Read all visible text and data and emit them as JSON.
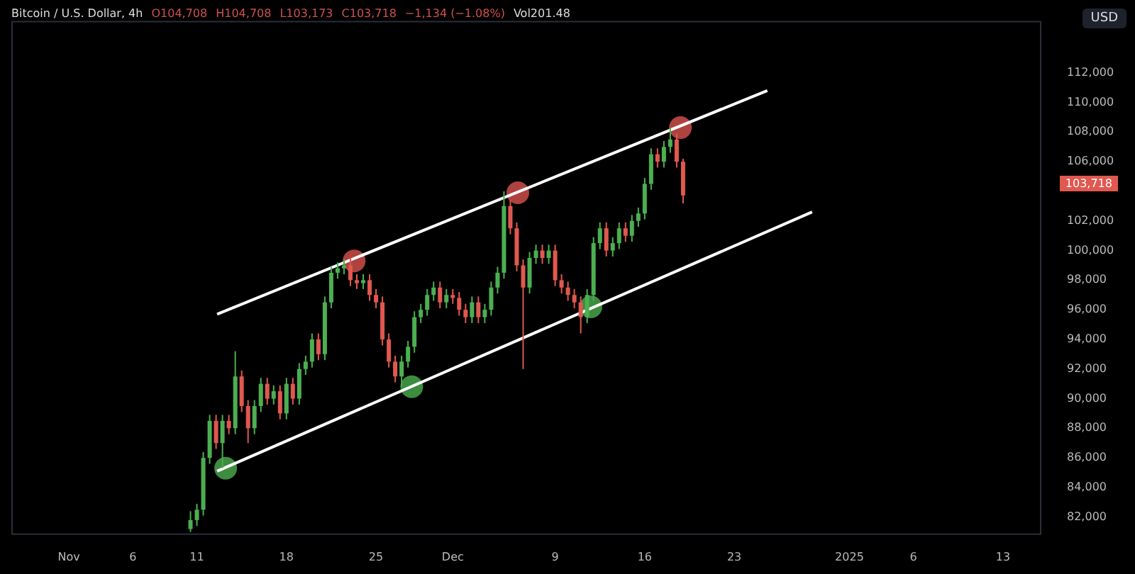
{
  "chart_data": {
    "type": "candlestick",
    "title": "Bitcoin / U.S. Dollar, 4h",
    "ylabel": "USD",
    "annotations": [
      "O104,708",
      "H104,708",
      "L103,173",
      "C103,718",
      "−1,134 (−1.08%)",
      "Vol201.48",
      "103,718"
    ],
    "x": [
      "2024-11-10T12:00",
      "2024-11-11T00:00",
      "2024-11-11T12:00",
      "2024-11-12T00:00",
      "2024-11-12T12:00",
      "2024-11-13T00:00",
      "2024-11-13T12:00",
      "2024-11-14T00:00",
      "2024-11-14T12:00",
      "2024-11-15T00:00",
      "2024-11-15T12:00",
      "2024-11-16T00:00",
      "2024-11-16T12:00",
      "2024-11-17T00:00",
      "2024-11-17T12:00",
      "2024-11-18T00:00",
      "2024-11-18T12:00",
      "2024-11-19T00:00",
      "2024-11-19T12:00",
      "2024-11-20T00:00",
      "2024-11-20T12:00",
      "2024-11-21T00:00",
      "2024-11-21T12:00",
      "2024-11-22T00:00",
      "2024-11-22T12:00",
      "2024-11-23T00:00",
      "2024-11-23T12:00",
      "2024-11-24T00:00",
      "2024-11-24T12:00",
      "2024-11-25T00:00",
      "2024-11-25T12:00",
      "2024-11-26T00:00",
      "2024-11-26T12:00",
      "2024-11-27T00:00",
      "2024-11-27T12:00",
      "2024-11-28T00:00",
      "2024-11-28T12:00",
      "2024-11-29T00:00",
      "2024-11-29T12:00",
      "2024-11-30T00:00",
      "2024-11-30T12:00",
      "2024-12-01T00:00",
      "2024-12-01T12:00",
      "2024-12-02T00:00",
      "2024-12-02T12:00",
      "2024-12-03T00:00",
      "2024-12-03T12:00",
      "2024-12-04T00:00",
      "2024-12-04T12:00",
      "2024-12-05T00:00",
      "2024-12-05T12:00",
      "2024-12-06T00:00",
      "2024-12-06T12:00",
      "2024-12-07T00:00",
      "2024-12-07T12:00",
      "2024-12-08T00:00",
      "2024-12-08T12:00",
      "2024-12-09T00:00",
      "2024-12-09T12:00",
      "2024-12-10T00:00",
      "2024-12-10T12:00",
      "2024-12-11T00:00",
      "2024-12-11T12:00",
      "2024-12-12T00:00",
      "2024-12-12T12:00",
      "2024-12-13T00:00",
      "2024-12-13T12:00",
      "2024-12-14T00:00",
      "2024-12-14T12:00",
      "2024-12-15T00:00",
      "2024-12-15T12:00",
      "2024-12-16T00:00",
      "2024-12-16T12:00",
      "2024-12-17T00:00",
      "2024-12-17T12:00",
      "2024-12-18T00:00",
      "2024-12-18T12:00",
      "2024-12-19T00:00"
    ],
    "ohlc": [
      [
        81200,
        82400,
        81000,
        81800
      ],
      [
        81800,
        82900,
        81400,
        82500
      ],
      [
        82500,
        86400,
        82100,
        86000
      ],
      [
        86000,
        88900,
        85600,
        88500
      ],
      [
        88500,
        88900,
        86600,
        87000
      ],
      [
        87000,
        88900,
        85300,
        88500
      ],
      [
        88500,
        88900,
        87600,
        88000
      ],
      [
        88000,
        93200,
        87600,
        91500
      ],
      [
        91500,
        91900,
        89100,
        89500
      ],
      [
        89500,
        89900,
        87000,
        88000
      ],
      [
        88000,
        89900,
        87600,
        89500
      ],
      [
        89500,
        91400,
        89100,
        91000
      ],
      [
        91000,
        91400,
        89600,
        90000
      ],
      [
        90000,
        90900,
        89600,
        90500
      ],
      [
        90500,
        90900,
        88600,
        89000
      ],
      [
        89000,
        91400,
        88600,
        91000
      ],
      [
        91000,
        91400,
        89600,
        90000
      ],
      [
        90000,
        92400,
        89600,
        92000
      ],
      [
        92000,
        92900,
        91600,
        92500
      ],
      [
        92500,
        94400,
        92100,
        94000
      ],
      [
        94000,
        94400,
        92600,
        93000
      ],
      [
        93000,
        96900,
        92600,
        96500
      ],
      [
        96500,
        98900,
        96100,
        98500
      ],
      [
        98500,
        99200,
        98100,
        98800
      ],
      [
        98800,
        99400,
        98400,
        99000
      ],
      [
        99000,
        99500,
        97600,
        98000
      ],
      [
        98000,
        98400,
        97400,
        97800
      ],
      [
        97800,
        98400,
        97400,
        98000
      ],
      [
        98000,
        98400,
        96600,
        97000
      ],
      [
        97000,
        97400,
        96100,
        96500
      ],
      [
        96500,
        96900,
        93600,
        94000
      ],
      [
        94000,
        94400,
        92100,
        92500
      ],
      [
        92500,
        92900,
        91100,
        91500
      ],
      [
        91500,
        92900,
        90800,
        92500
      ],
      [
        92500,
        93900,
        92100,
        93500
      ],
      [
        93500,
        95900,
        93100,
        95500
      ],
      [
        95500,
        96400,
        95100,
        96000
      ],
      [
        96000,
        97400,
        95600,
        97000
      ],
      [
        97000,
        97900,
        96600,
        97500
      ],
      [
        97500,
        97900,
        96100,
        96500
      ],
      [
        96500,
        97400,
        96100,
        97000
      ],
      [
        97000,
        97400,
        96400,
        96800
      ],
      [
        96800,
        97200,
        95600,
        96000
      ],
      [
        96000,
        96400,
        95100,
        95500
      ],
      [
        95500,
        96900,
        95100,
        96500
      ],
      [
        96500,
        96900,
        95100,
        95500
      ],
      [
        95500,
        96400,
        95100,
        96000
      ],
      [
        96000,
        97900,
        95600,
        97500
      ],
      [
        97500,
        98900,
        97100,
        98500
      ],
      [
        98500,
        104000,
        98100,
        103000
      ],
      [
        103000,
        103400,
        101100,
        101500
      ],
      [
        101500,
        101900,
        98600,
        99000
      ],
      [
        99000,
        99400,
        92000,
        97500
      ],
      [
        97500,
        99900,
        97100,
        99500
      ],
      [
        99500,
        100400,
        99100,
        100000
      ],
      [
        100000,
        100400,
        99100,
        99500
      ],
      [
        99500,
        100400,
        99100,
        100000
      ],
      [
        100000,
        100400,
        97600,
        98000
      ],
      [
        98000,
        98400,
        97100,
        97500
      ],
      [
        97500,
        97900,
        96600,
        97000
      ],
      [
        97000,
        97400,
        96100,
        96500
      ],
      [
        96500,
        96900,
        94400,
        95500
      ],
      [
        95500,
        97400,
        95100,
        97000
      ],
      [
        97000,
        100900,
        96600,
        100500
      ],
      [
        100500,
        101900,
        100100,
        101500
      ],
      [
        101500,
        101900,
        99600,
        100000
      ],
      [
        100000,
        100900,
        99600,
        100500
      ],
      [
        100500,
        101900,
        100100,
        101500
      ],
      [
        101500,
        101900,
        100600,
        101000
      ],
      [
        101000,
        102400,
        100600,
        102000
      ],
      [
        102000,
        102900,
        101600,
        102500
      ],
      [
        102500,
        104900,
        102100,
        104500
      ],
      [
        104500,
        106900,
        104100,
        106500
      ],
      [
        106500,
        106900,
        105600,
        106000
      ],
      [
        106000,
        107400,
        105600,
        107000
      ],
      [
        107000,
        108300,
        106600,
        107500
      ],
      [
        107500,
        107900,
        105600,
        106000
      ],
      [
        106000,
        106200,
        103173,
        103718
      ]
    ],
    "series": [
      {
        "type": "line",
        "color": "#ffffff",
        "x": [
          "2024-11-12T14:00",
          "2024-12-25T14:00"
        ],
        "values": [
          95700,
          110800
        ]
      },
      {
        "type": "line",
        "color": "#ffffff",
        "x": [
          "2024-11-12T14:00",
          "2024-12-29T02:00"
        ],
        "values": [
          85100,
          102600
        ]
      },
      {
        "type": "scatter",
        "color": "#d9534f",
        "marker": "circle",
        "x": [
          "2024-11-23T07:00",
          "2024-12-06T02:00",
          "2024-12-18T19:00"
        ],
        "values": [
          99300,
          103900,
          108300
        ]
      },
      {
        "type": "scatter",
        "color": "#4caf50",
        "marker": "circle",
        "x": [
          "2024-11-13T06:00",
          "2024-11-27T19:00",
          "2024-12-11T19:00"
        ],
        "values": [
          85300,
          90800,
          96200
        ]
      }
    ],
    "xlim": [
      "2024-10-27T12:00",
      "2025-01-16T00:00"
    ],
    "xticks": [
      {
        "value": "2024-11-01",
        "label": "Nov"
      },
      {
        "value": "2024-11-06",
        "label": "6"
      },
      {
        "value": "2024-11-11",
        "label": "11"
      },
      {
        "value": "2024-11-18",
        "label": "18"
      },
      {
        "value": "2024-11-25",
        "label": "25"
      },
      {
        "value": "2024-12-01",
        "label": "Dec"
      },
      {
        "value": "2024-12-09",
        "label": "9"
      },
      {
        "value": "2024-12-16",
        "label": "16"
      },
      {
        "value": "2024-12-23",
        "label": "23"
      },
      {
        "value": "2025-01-01",
        "label": "2025"
      },
      {
        "value": "2025-01-06",
        "label": "6"
      },
      {
        "value": "2025-01-13",
        "label": "13"
      }
    ],
    "ylim": [
      80800,
      115500
    ],
    "yticks": [
      {
        "value": 82000,
        "label": "82,000"
      },
      {
        "value": 84000,
        "label": "84,000"
      },
      {
        "value": 86000,
        "label": "86,000"
      },
      {
        "value": 88000,
        "label": "88,000"
      },
      {
        "value": 90000,
        "label": "90,000"
      },
      {
        "value": 92000,
        "label": "92,000"
      },
      {
        "value": 94000,
        "label": "94,000"
      },
      {
        "value": 96000,
        "label": "96,000"
      },
      {
        "value": 98000,
        "label": "98,000"
      },
      {
        "value": 100000,
        "label": "100,000"
      },
      {
        "value": 102000,
        "label": "102,000"
      },
      {
        "value": 106000,
        "label": "106,000"
      },
      {
        "value": 108000,
        "label": "108,000"
      },
      {
        "value": 110000,
        "label": "110,000"
      },
      {
        "value": 112000,
        "label": "112,000"
      }
    ],
    "grid": false,
    "legend": false
  }
}
